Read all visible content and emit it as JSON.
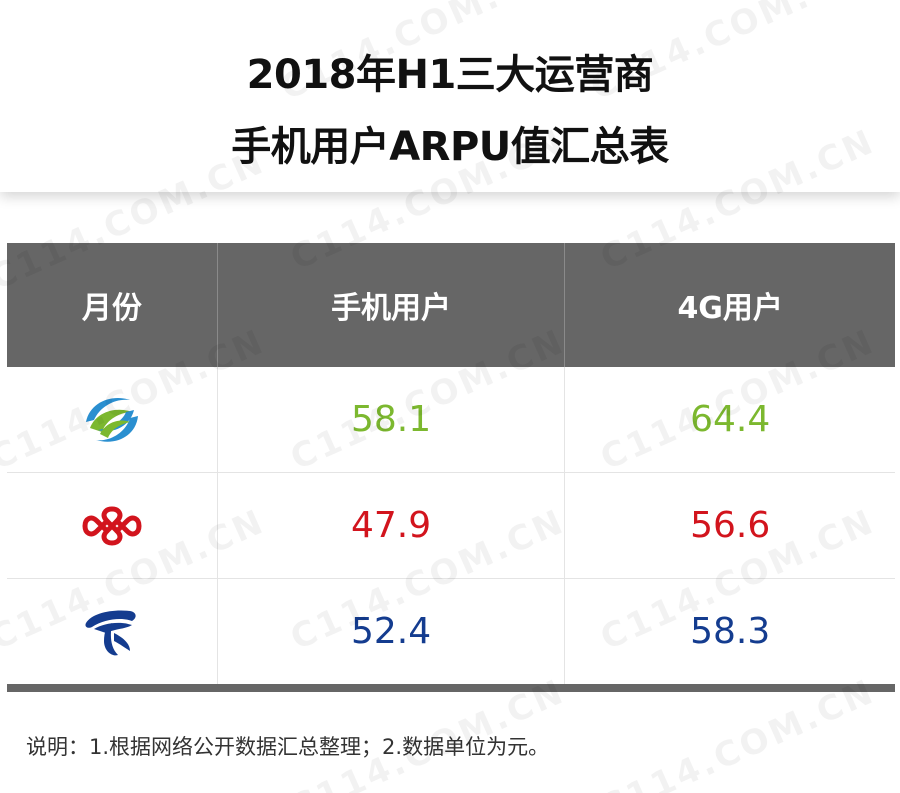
{
  "title": {
    "line1": "2018年H1三大运营商",
    "line2": "手机用户ARPU值汇总表"
  },
  "table": {
    "headers": [
      "月份",
      "手机用户",
      "4G用户"
    ],
    "rows": [
      {
        "operator_icon": "china-mobile-logo",
        "color": "#7cb82f",
        "mobile": "58.1",
        "fourg": "64.4"
      },
      {
        "operator_icon": "china-unicom-logo",
        "color": "#d2141d",
        "mobile": "47.9",
        "fourg": "56.6"
      },
      {
        "operator_icon": "china-telecom-logo",
        "color": "#143c8f",
        "mobile": "52.4",
        "fourg": "58.3"
      }
    ]
  },
  "note": "说明：1.根据网络公开数据汇总整理；2.数据单位为元。",
  "watermark": "C114.COM.CN",
  "colors": {
    "header_bg": "#666666",
    "mobile_green": "#7cb82f",
    "unicom_red": "#d2141d",
    "telecom_blue": "#143c8f"
  }
}
